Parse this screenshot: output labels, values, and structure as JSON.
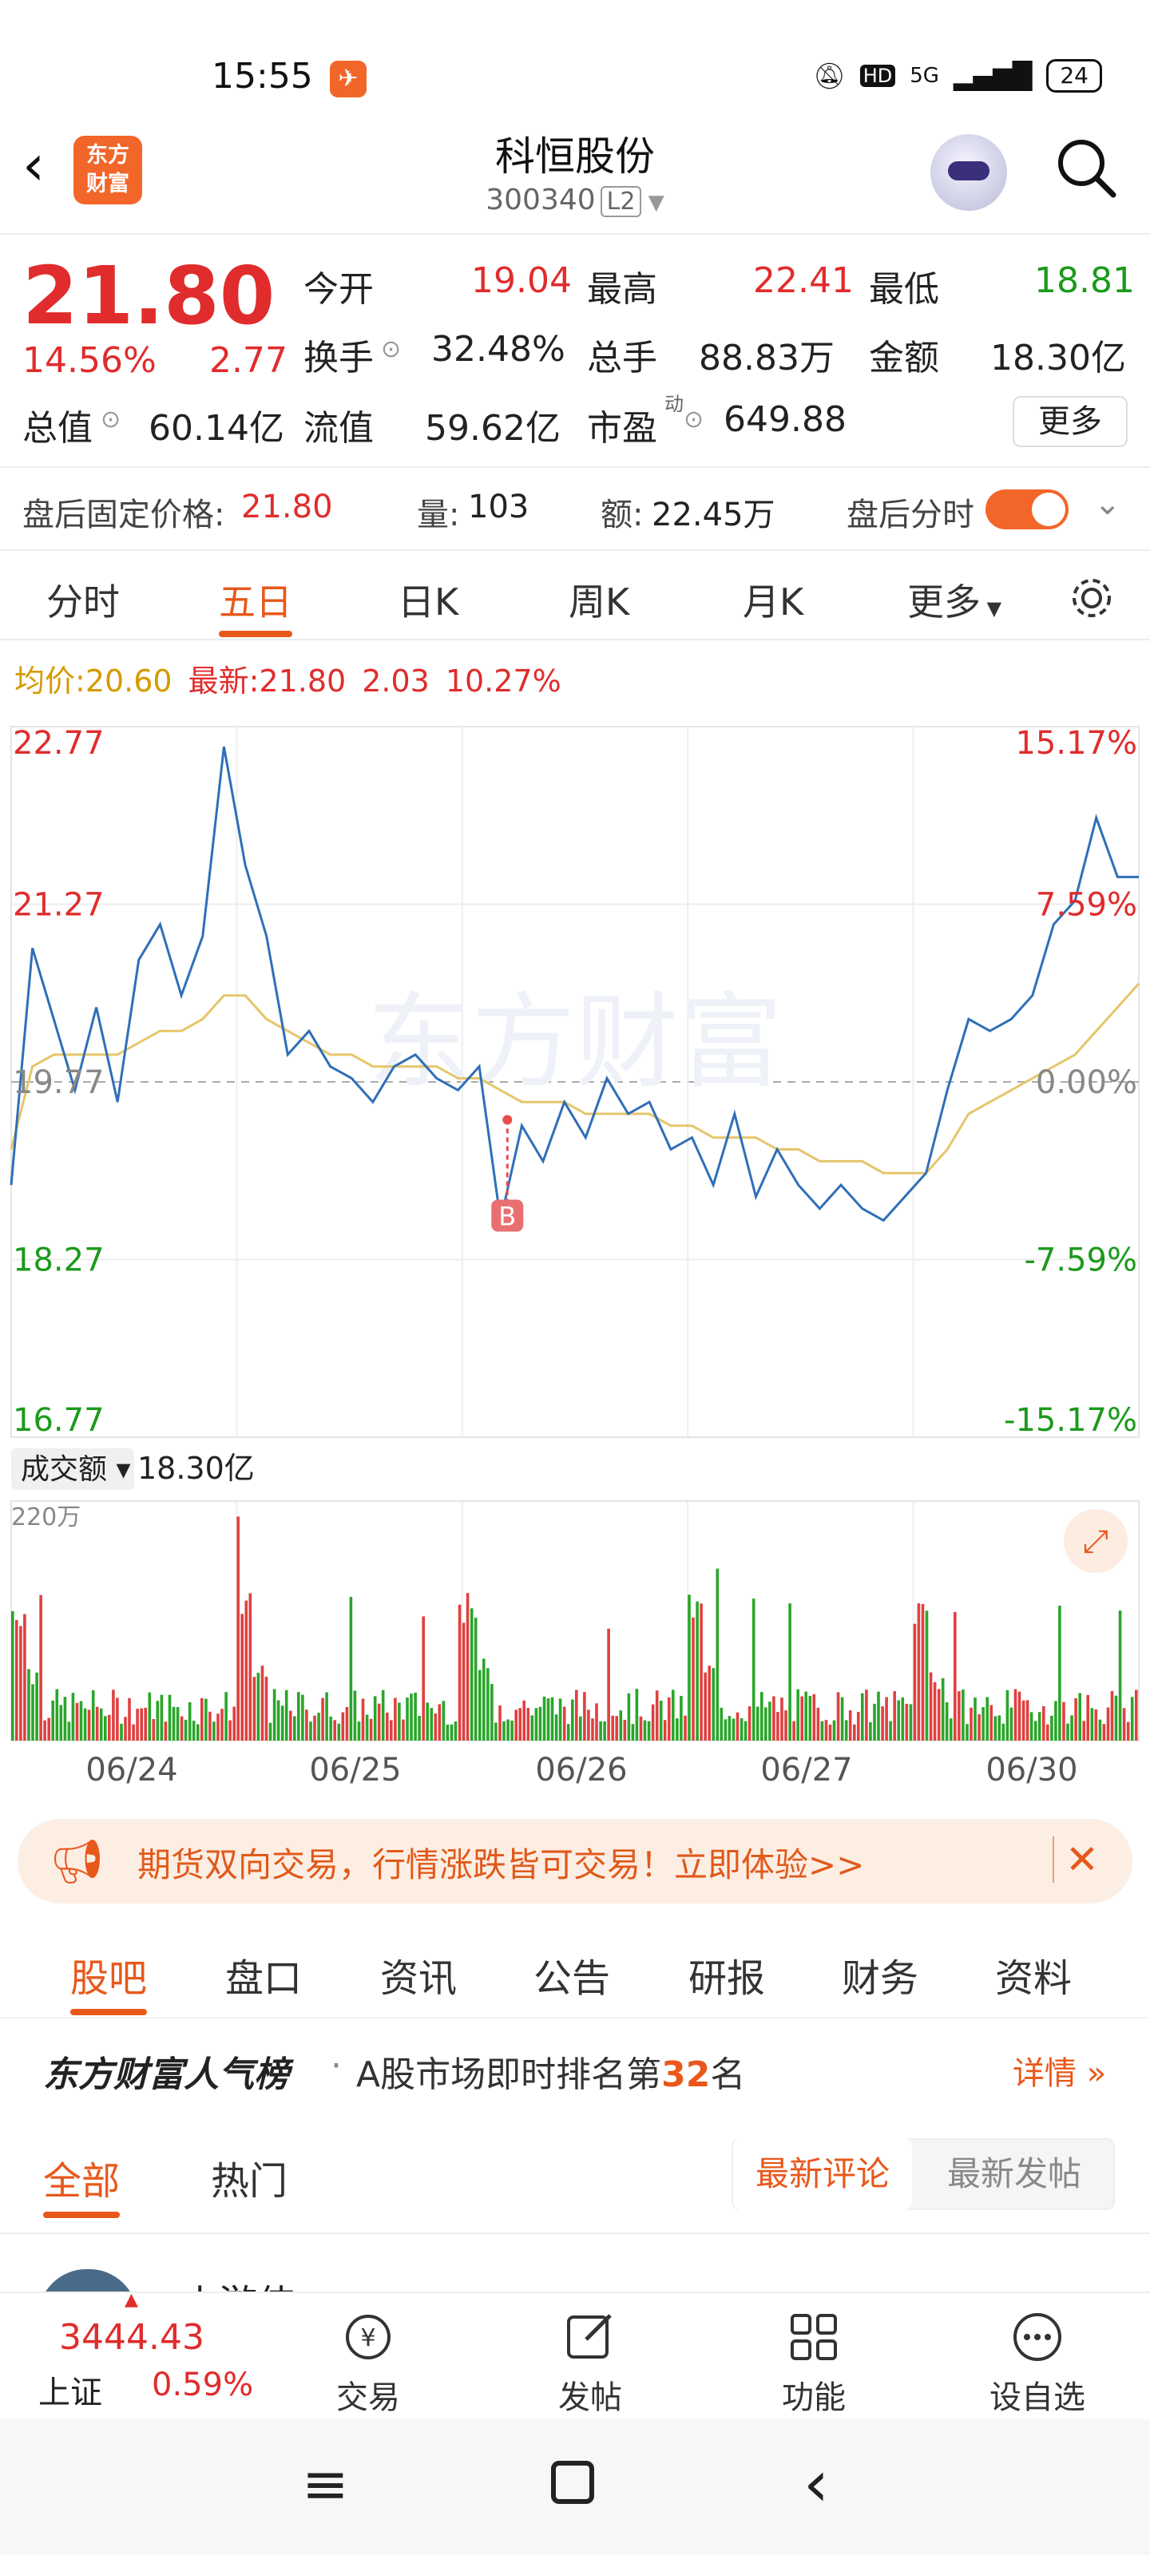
{
  "status_bar": {
    "time": "15:55",
    "network": "5G",
    "battery": "24",
    "hd": "HD"
  },
  "header": {
    "logo_text": "东方财富",
    "title": "科恒股份",
    "code": "300340",
    "level": "L2"
  },
  "quote": {
    "price": "21.80",
    "change_pct": "14.56%",
    "change": "2.77",
    "open_label": "今开",
    "open": "19.04",
    "high_label": "最高",
    "high": "22.41",
    "low_label": "最低",
    "low": "18.81",
    "turnover_label": "换手",
    "turnover": "32.48%",
    "volume_label": "总手",
    "volume": "88.83万",
    "amount_label": "金额",
    "amount": "18.30亿",
    "mcap_label": "总值",
    "mcap": "60.14亿",
    "float_label": "流值",
    "float": "59.62亿",
    "pe_label": "市盈",
    "pe_sup": "动",
    "pe": "649.88",
    "more": "更多"
  },
  "after_hours": {
    "price_label": "盘后固定价格:",
    "price": "21.80",
    "vol_label": "量:",
    "vol": "103",
    "amt_label": "额:",
    "amt": "22.45万",
    "toggle_label": "盘后分时",
    "toggle_on": true
  },
  "tabs": [
    "分时",
    "五日",
    "日K",
    "周K",
    "月K",
    "更多"
  ],
  "active_tab": 1,
  "avg_line": {
    "avg_label": "均价:",
    "avg": "20.60",
    "latest_label": "最新:",
    "latest": "21.80",
    "chg": "2.03",
    "pct": "10.27%"
  },
  "chart_data": {
    "type": "line",
    "series": [
      {
        "values": [
          18.9,
          20.9,
          20.3,
          19.7,
          20.4,
          19.6,
          20.8,
          21.1,
          20.5,
          21.0,
          22.6,
          21.6,
          21.0,
          20.0,
          20.2,
          19.9,
          19.8,
          19.6,
          19.9,
          20.0,
          19.8,
          19.7,
          19.9,
          18.6,
          19.4,
          19.1,
          19.6,
          19.3,
          19.8,
          19.5,
          19.6,
          19.2,
          19.3,
          18.9,
          19.5,
          18.8,
          19.2,
          18.9,
          18.7,
          18.9,
          18.7,
          18.6,
          18.8,
          19.0,
          19.7,
          20.3,
          20.2,
          20.3,
          20.5,
          21.1,
          21.3,
          22.0,
          21.5,
          21.5
        ]
      },
      {
        "values": [
          19.2,
          19.9,
          20.0,
          20.0,
          20.0,
          20.0,
          20.1,
          20.2,
          20.2,
          20.3,
          20.5,
          20.5,
          20.3,
          20.2,
          20.1,
          20.0,
          20.0,
          19.9,
          19.9,
          19.9,
          19.9,
          19.8,
          19.8,
          19.7,
          19.6,
          19.6,
          19.6,
          19.5,
          19.5,
          19.5,
          19.5,
          19.4,
          19.4,
          19.3,
          19.3,
          19.3,
          19.2,
          19.2,
          19.1,
          19.1,
          19.1,
          19.0,
          19.0,
          19.0,
          19.2,
          19.5,
          19.6,
          19.7,
          19.8,
          19.9,
          20.0,
          20.2,
          20.4,
          20.6
        ]
      }
    ],
    "y_labels": [
      "22.77",
      "21.27",
      "19.77",
      "18.27",
      "16.77"
    ],
    "pct_labels": [
      "15.17%",
      "7.59%",
      "0.00%",
      "-7.59%",
      "-15.17%"
    ],
    "ylim": [
      16.77,
      22.77
    ],
    "x_labels": [
      "06/24",
      "06/25",
      "06/26",
      "06/27",
      "06/30"
    ],
    "marker": "B",
    "volume_label": "成交额",
    "volume_total": "18.30亿",
    "volume_scale": "220万"
  },
  "ad": {
    "text": "期货双向交易，行情涨跌皆可交易！立即体验>>"
  },
  "f10_tabs": [
    "股吧",
    "盘口",
    "资讯",
    "公告",
    "研报",
    "财务",
    "资料"
  ],
  "rank": {
    "brand": "东方财富人气榜",
    "prefix": "A股市场即时排名第",
    "rank": "32",
    "suffix": "名",
    "link": "详情"
  },
  "sub_tabs": {
    "all": "全部",
    "hot": "热门",
    "latest_comment": "最新评论",
    "latest_post": "最新发帖"
  },
  "post_preview": {
    "author": "小游侠"
  },
  "bottom_nav": {
    "index_value": "3444.43",
    "index_name": "上证",
    "index_pct": "0.59%",
    "items": [
      "交易",
      "发帖",
      "功能",
      "设自选"
    ]
  }
}
